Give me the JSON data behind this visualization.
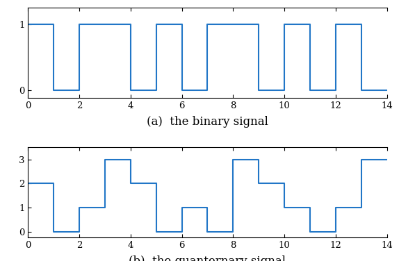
{
  "binary_x": [
    0,
    1,
    1,
    2,
    2,
    4,
    4,
    5,
    5,
    6,
    6,
    7,
    7,
    9,
    9,
    10,
    10,
    11,
    11,
    12,
    12,
    13,
    13,
    14
  ],
  "binary_y": [
    1,
    1,
    0,
    0,
    1,
    1,
    0,
    0,
    1,
    1,
    0,
    0,
    1,
    1,
    0,
    0,
    1,
    1,
    0,
    0,
    1,
    1,
    0,
    0
  ],
  "quart_x": [
    0,
    1,
    1,
    2,
    2,
    3,
    3,
    4,
    4,
    5,
    5,
    6,
    6,
    7,
    7,
    8,
    8,
    9,
    9,
    10,
    10,
    11,
    11,
    12,
    12,
    13,
    13,
    14
  ],
  "quart_y": [
    2,
    2,
    0,
    0,
    1,
    1,
    3,
    3,
    2,
    2,
    0,
    0,
    1,
    1,
    0,
    0,
    3,
    3,
    2,
    2,
    1,
    1,
    0,
    0,
    1,
    1,
    3,
    3
  ],
  "line_color": "#2176c7",
  "label_a": "(a)  the binary signal",
  "label_b": "(b)  the quanternary signal",
  "xlim": [
    0,
    14
  ],
  "binary_ylim": [
    -0.12,
    1.25
  ],
  "quart_ylim": [
    -0.25,
    3.5
  ],
  "binary_yticks": [
    0,
    1
  ],
  "quart_yticks": [
    0,
    1,
    2,
    3
  ],
  "xticks": [
    0,
    2,
    4,
    6,
    8,
    10,
    12,
    14
  ],
  "figsize": [
    5.74,
    3.76
  ],
  "dpi": 100,
  "label_fontsize": 12,
  "tick_fontsize": 9.5,
  "linewidth": 1.5
}
